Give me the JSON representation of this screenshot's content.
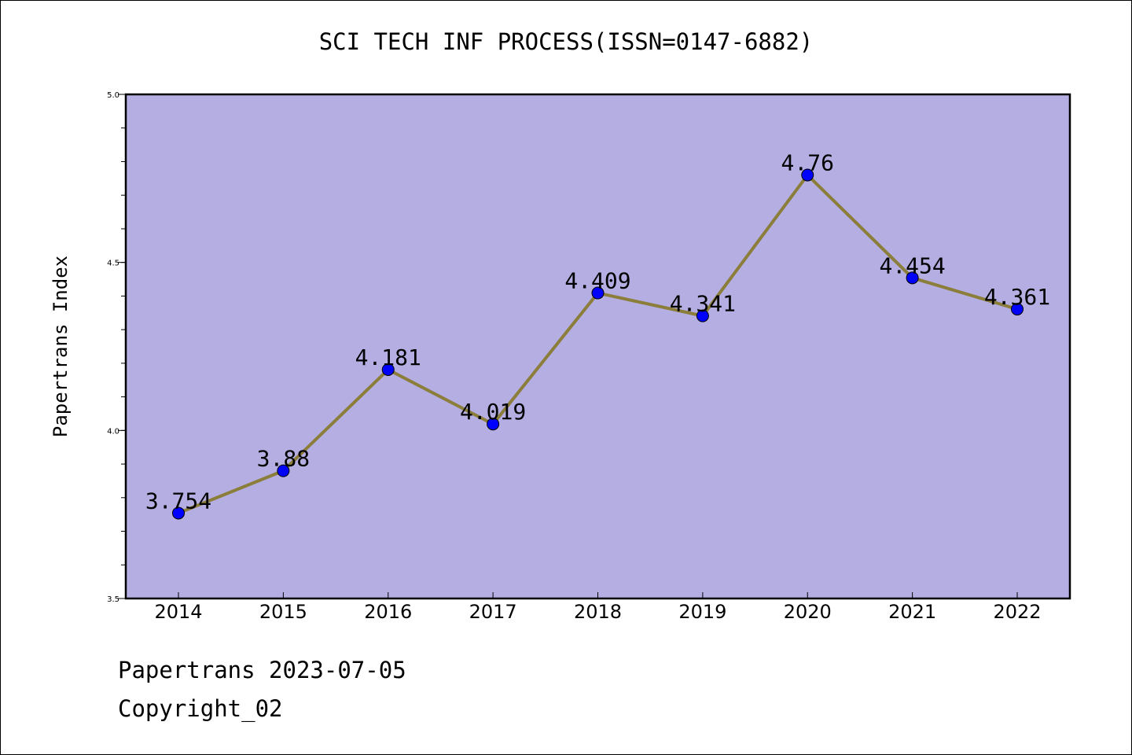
{
  "chart_data": {
    "type": "line",
    "title": "SCI TECH INF PROCESS(ISSN=0147-6882)",
    "xlabel": "",
    "ylabel": "Papertrans Index",
    "categories": [
      "2014",
      "2015",
      "2016",
      "2017",
      "2018",
      "2019",
      "2020",
      "2021",
      "2022"
    ],
    "values": [
      3.754,
      3.88,
      4.181,
      4.019,
      4.409,
      4.341,
      4.76,
      4.454,
      4.361
    ],
    "data_labels": [
      "3.754",
      "3.88",
      "4.181",
      "4.019",
      "4.409",
      "4.341",
      "4.76",
      "4.454",
      "4.361"
    ],
    "ylim": [
      3.5,
      5.0
    ],
    "y_ticks": [
      "3.5",
      "4.0",
      "4.5",
      "5.0"
    ],
    "y_minor_step": 0.1,
    "grid": false,
    "plot_background": "#b4aee2",
    "line_color": "#8b7d3a",
    "marker_color": "#0000ff"
  },
  "footer": {
    "date_line": "Papertrans 2023-07-05",
    "copyright": "Copyright_02"
  }
}
